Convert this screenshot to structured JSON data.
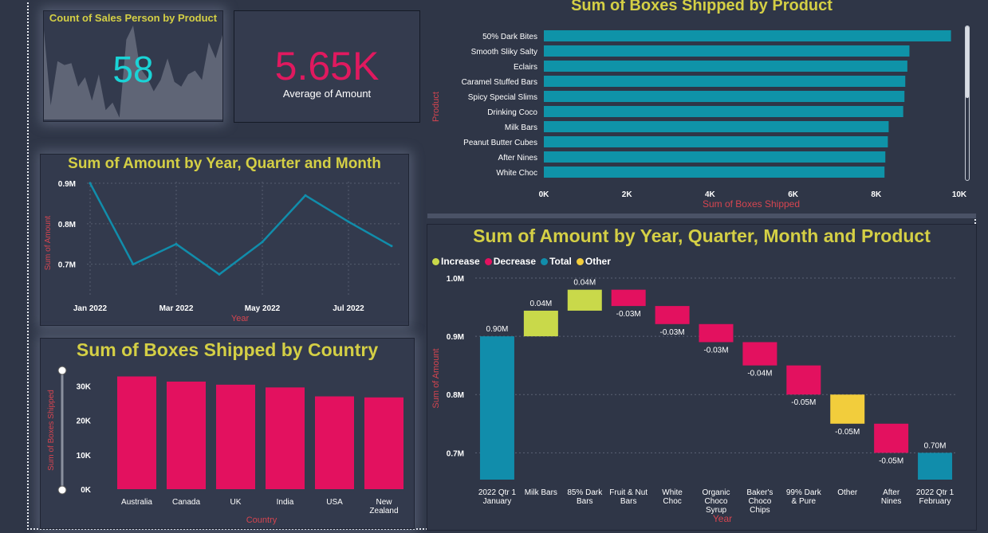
{
  "kpi_sales_person": {
    "title": "Count of Sales Person by Product",
    "value": "58",
    "sparkline": [
      0.95,
      0.15,
      0.62,
      0.58,
      0.6,
      0.35,
      0.45,
      0.2,
      0.48,
      0.1,
      0.18,
      0.02,
      0.85,
      1.0,
      0.55,
      0.45,
      0.3,
      0.42,
      0.65,
      0.4,
      0.35,
      0.48,
      0.52,
      0.42,
      0.82,
      0.65,
      0.9
    ]
  },
  "kpi_amount": {
    "value": "5.65K",
    "label": "Average of Amount"
  },
  "chart_data": [
    {
      "type": "line",
      "title": "Sum of Amount by Year, Quarter and Month",
      "xlabel": "Year",
      "ylabel": "Sum of Amount",
      "x": [
        "Jan 2022",
        "Feb 2022",
        "Mar 2022",
        "Apr 2022",
        "May 2022",
        "Jun 2022",
        "Jul 2022",
        "Aug 2022"
      ],
      "values": [
        0.9,
        0.7,
        0.75,
        0.675,
        0.755,
        0.87,
        0.805,
        0.745
      ],
      "x_tick_labels": [
        "Jan 2022",
        "Mar 2022",
        "May 2022",
        "Jul 2022"
      ],
      "y_tick_labels": [
        "0.7M",
        "0.8M",
        "0.9M"
      ],
      "y_ticks": [
        0.7,
        0.8,
        0.9
      ],
      "ylim": [
        0.66,
        0.9
      ],
      "color": "#118dab"
    },
    {
      "type": "bar",
      "orientation": "horizontal",
      "title": "Sum of Boxes Shipped by Product",
      "xlabel": "Sum of Boxes Shipped",
      "ylabel": "Product",
      "categories": [
        "50% Dark Bites",
        "Smooth Sliky Salty",
        "Eclairs",
        "Caramel Stuffed Bars",
        "Spicy Special Slims",
        "Drinking Coco",
        "Milk Bars",
        "Peanut Butter Cubes",
        "After Nines",
        "White Choc"
      ],
      "values": [
        9800,
        8800,
        8750,
        8700,
        8680,
        8650,
        8300,
        8280,
        8220,
        8200
      ],
      "x_ticks": [
        0,
        2000,
        4000,
        6000,
        8000,
        10000
      ],
      "x_tick_labels": [
        "0K",
        "2K",
        "4K",
        "6K",
        "8K",
        "10K"
      ],
      "xlim": [
        0,
        10000
      ],
      "color": "#0f93a8"
    },
    {
      "type": "bar",
      "title": "Sum of Boxes Shipped by Country",
      "xlabel": "Country",
      "ylabel": "Sum of Boxes Shipped",
      "categories": [
        "Australia",
        "Canada",
        "UK",
        "India",
        "USA",
        "New Zealand"
      ],
      "values": [
        32800,
        31300,
        30400,
        29600,
        27000,
        26700
      ],
      "y_ticks": [
        0,
        10000,
        20000,
        30000
      ],
      "y_tick_labels": [
        "0K",
        "10K",
        "20K",
        "30K"
      ],
      "ylim": [
        0,
        35000
      ],
      "color": "#e3115f"
    },
    {
      "type": "waterfall",
      "title": "Sum of Amount by Year, Quarter, Month and Product",
      "xlabel": "Year",
      "ylabel": "Sum of Amount",
      "legend": [
        {
          "name": "Increase",
          "color": "#c9d94a"
        },
        {
          "name": "Decrease",
          "color": "#e3115f"
        },
        {
          "name": "Total",
          "color": "#118dab"
        },
        {
          "name": "Other",
          "color": "#f2cd3c"
        }
      ],
      "y_ticks": [
        0.7,
        0.8,
        0.9,
        1.0
      ],
      "y_tick_labels": [
        "0.7M",
        "0.8M",
        "0.9M",
        "1.0M"
      ],
      "ylim": [
        0.654,
        1.0
      ],
      "steps": [
        {
          "category": [
            "2022 Qtr 1",
            "January"
          ],
          "kind": "total",
          "value": 0.9,
          "label": "0.90M"
        },
        {
          "category": [
            "Milk Bars"
          ],
          "kind": "increase",
          "value": 0.044,
          "label": "0.04M"
        },
        {
          "category": [
            "85% Dark",
            "Bars"
          ],
          "kind": "increase",
          "value": 0.036,
          "label": "0.04M"
        },
        {
          "category": [
            "Fruit & Nut",
            "Bars"
          ],
          "kind": "decrease",
          "value": -0.028,
          "label": "-0.03M"
        },
        {
          "category": [
            "White",
            "Choc"
          ],
          "kind": "decrease",
          "value": -0.031,
          "label": "-0.03M"
        },
        {
          "category": [
            "Organic",
            "Choco",
            "Syrup"
          ],
          "kind": "decrease",
          "value": -0.031,
          "label": "-0.03M"
        },
        {
          "category": [
            "Baker's",
            "Choco",
            "Chips"
          ],
          "kind": "decrease",
          "value": -0.04,
          "label": "-0.04M"
        },
        {
          "category": [
            "99% Dark",
            "& Pure"
          ],
          "kind": "decrease",
          "value": -0.05,
          "label": "-0.05M"
        },
        {
          "category": [
            "Other"
          ],
          "kind": "other",
          "value": -0.05,
          "label": "-0.05M"
        },
        {
          "category": [
            "After",
            "Nines"
          ],
          "kind": "decrease",
          "value": -0.05,
          "label": "-0.05M"
        },
        {
          "category": [
            "2022 Qtr 1",
            "February"
          ],
          "kind": "total",
          "value": 0.7,
          "label": "0.70M"
        }
      ]
    }
  ],
  "colors": {
    "title": "#d4cf45",
    "axis_title": "#d64550",
    "background": "#2f3647",
    "card": "#333a4d",
    "kpi_teal": "#1ad3d6",
    "kpi_pink": "#e0195f"
  }
}
